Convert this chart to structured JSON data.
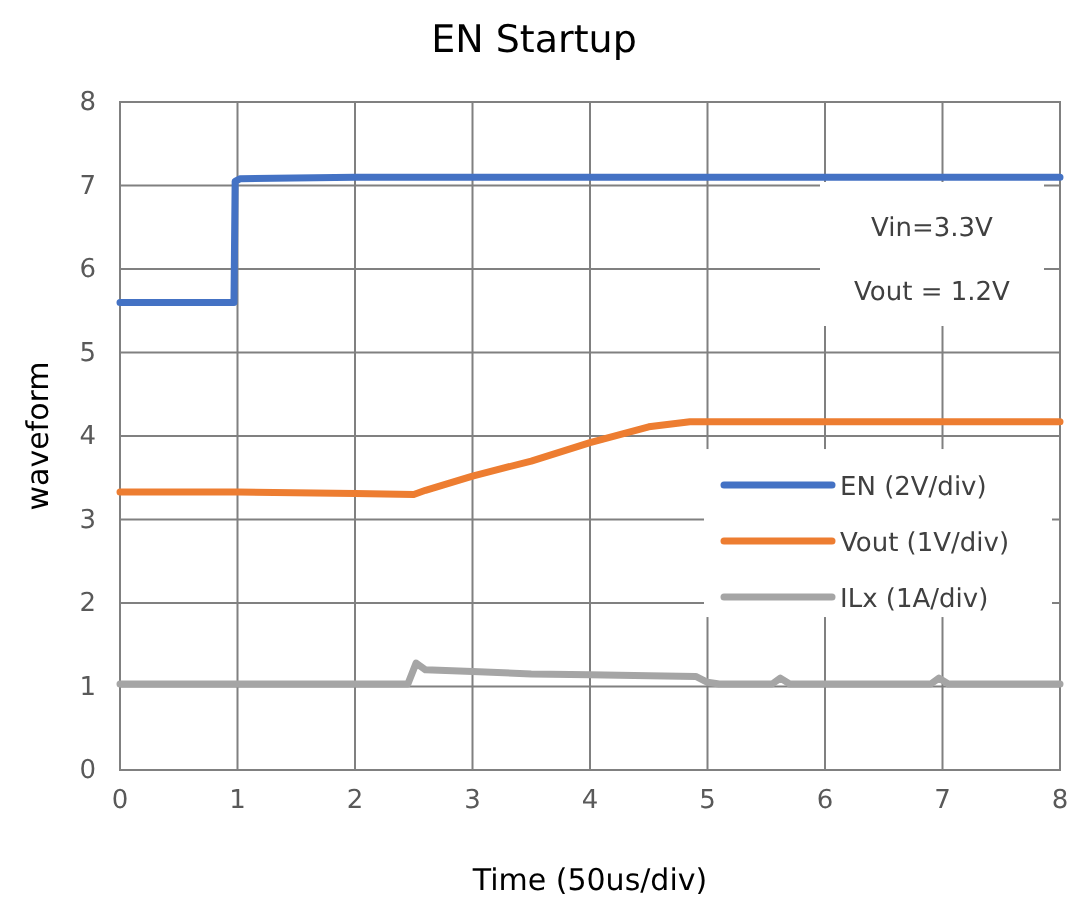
{
  "chart_data": {
    "type": "line",
    "title": "EN Startup",
    "xlabel": "Time (50us/div)",
    "ylabel": "waveform",
    "xlim": [
      0,
      8
    ],
    "ylim": [
      0,
      8
    ],
    "xticks": [
      0,
      1,
      2,
      3,
      4,
      5,
      6,
      7,
      8
    ],
    "yticks": [
      0,
      1,
      2,
      3,
      4,
      5,
      6,
      7,
      8
    ],
    "grid": true,
    "legend": "right",
    "marker": "none",
    "line_style": "solid",
    "annotations": [
      "Vin=3.3V",
      "Vout = 1.2V"
    ],
    "series": [
      {
        "name": "EN (2V/div)",
        "color": "#4472c4",
        "x": [
          0,
          0.97,
          0.98,
          1.02,
          2,
          4,
          6,
          8
        ],
        "values": [
          5.6,
          5.6,
          7.05,
          7.08,
          7.1,
          7.1,
          7.1,
          7.1
        ]
      },
      {
        "name": "Vout (1V/div)",
        "color": "#ed7d31",
        "x": [
          0,
          1,
          2,
          2.5,
          2.6,
          3,
          3.5,
          4,
          4.5,
          4.85,
          6,
          8
        ],
        "values": [
          3.33,
          3.33,
          3.31,
          3.3,
          3.35,
          3.52,
          3.7,
          3.92,
          4.11,
          4.17,
          4.17,
          4.17
        ]
      },
      {
        "name": "ILx (1A/div)",
        "color": "#a5a5a5",
        "x": [
          0,
          2.45,
          2.52,
          2.6,
          3,
          3.5,
          4,
          4.5,
          4.9,
          5,
          5.1,
          5.55,
          5.62,
          5.7,
          6.9,
          6.97,
          7.05,
          8
        ],
        "values": [
          1.03,
          1.03,
          1.28,
          1.2,
          1.18,
          1.15,
          1.14,
          1.13,
          1.12,
          1.05,
          1.03,
          1.03,
          1.1,
          1.03,
          1.03,
          1.1,
          1.03,
          1.03
        ]
      }
    ]
  }
}
